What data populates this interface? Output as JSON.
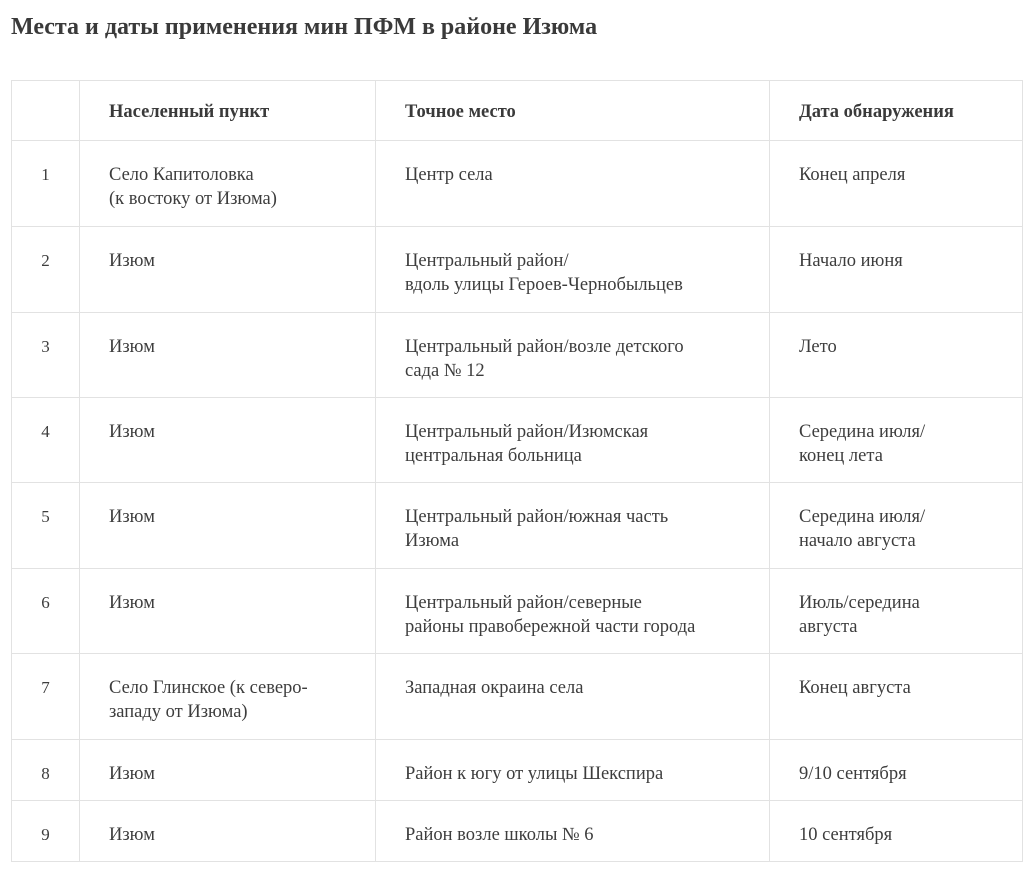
{
  "title": "Места и даты применения мин ПФМ в районе Изюма",
  "table": {
    "headers": [
      "",
      "Населенный пункт",
      "Точное место",
      "Дата обнаружения"
    ],
    "rows": [
      {
        "n": "1",
        "place": [
          "Село Капитоловка",
          "(к востоку от Изюма)"
        ],
        "spot": [
          "Центр села"
        ],
        "date": [
          "Конец апреля"
        ]
      },
      {
        "n": "2",
        "place": [
          "Изюм"
        ],
        "spot": [
          "Центральный район/",
          "вдоль улицы Героев-Чернобыльцев"
        ],
        "date": [
          "Начало июня"
        ]
      },
      {
        "n": "3",
        "place": [
          "Изюм"
        ],
        "spot": [
          "Центральный район/возле детского",
          "сада № 12"
        ],
        "date": [
          "Лето"
        ]
      },
      {
        "n": "4",
        "place": [
          "Изюм"
        ],
        "spot": [
          "Центральный район/Изюмская",
          "центральная больница"
        ],
        "date": [
          "Середина июля/",
          "конец лета"
        ]
      },
      {
        "n": "5",
        "place": [
          "Изюм"
        ],
        "spot": [
          "Центральный район/южная часть",
          "Изюма"
        ],
        "date": [
          "Середина июля/",
          "начало августа"
        ]
      },
      {
        "n": "6",
        "place": [
          "Изюм"
        ],
        "spot": [
          "Центральный район/северные",
          "районы правобережной части города"
        ],
        "date": [
          "Июль/середина",
          "августа"
        ]
      },
      {
        "n": "7",
        "place": [
          "Село Глинское (к северо-",
          "западу от Изюма)"
        ],
        "spot": [
          "Западная окраина села"
        ],
        "date": [
          "Конец августа"
        ]
      },
      {
        "n": "8",
        "place": [
          "Изюм"
        ],
        "spot": [
          "Район к югу от улицы Шекспира"
        ],
        "date": [
          "9/10 сентября"
        ]
      },
      {
        "n": "9",
        "place": [
          "Изюм"
        ],
        "spot": [
          "Район возле школы № 6"
        ],
        "date": [
          "10 сентября"
        ]
      }
    ]
  }
}
